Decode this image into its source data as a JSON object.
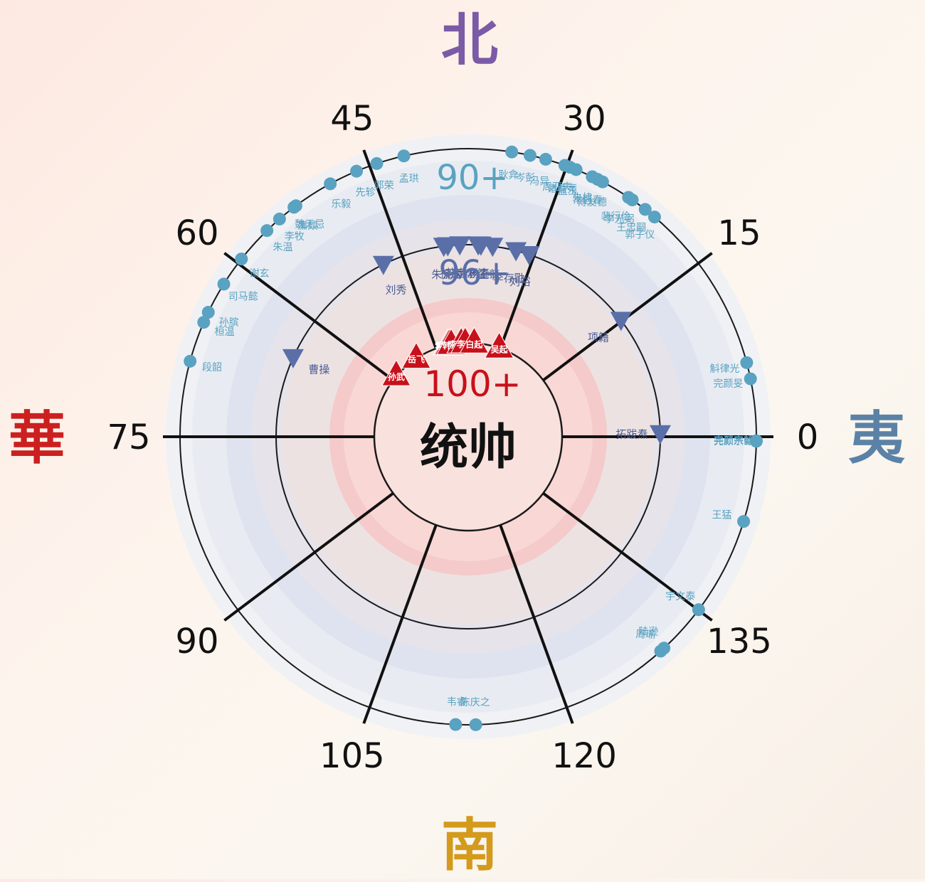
{
  "directions": {
    "north": {
      "text": "北",
      "color": "#7b5aa6"
    },
    "south": {
      "text": "南",
      "color": "#d39a1c"
    },
    "west": {
      "text": "華",
      "color": "#cc1f1f"
    },
    "east": {
      "text": "夷",
      "color": "#5b82a6"
    }
  },
  "center": {
    "title": "统帅",
    "tier_label": "100+"
  },
  "tiers": {
    "inner": {
      "label": "100+",
      "color": "#c8101a"
    },
    "middle": {
      "label": "96+",
      "color": "#5a6fa8"
    },
    "outer": {
      "label": "90+",
      "color": "#5aa2c1"
    }
  },
  "angle_labels": [
    "0",
    "15",
    "30",
    "45",
    "60",
    "75",
    "90",
    "105",
    "120",
    "135"
  ],
  "commanders": {
    "inner": [
      {
        "name": "孙武",
        "angle": 41
      },
      {
        "name": "岳飞",
        "angle": 57
      },
      {
        "name": "霍去病",
        "angle": 77.5
      },
      {
        "name": "卫青",
        "angle": 77.8
      },
      {
        "name": "戚继光",
        "angle": 78.5
      },
      {
        "name": "韩信",
        "angle": 79.7
      },
      {
        "name": "李世民",
        "angle": 85.8
      },
      {
        "name": "李靖",
        "angle": 88.2
      },
      {
        "name": "白起",
        "angle": 93.6
      },
      {
        "name": "吴起",
        "angle": 109
      }
    ],
    "middle": [
      {
        "name": "曹操",
        "angle": 24.3
      },
      {
        "name": "刘秀",
        "angle": 63.8
      },
      {
        "name": "朱元璋",
        "angle": 82.7
      },
      {
        "name": "徐达",
        "angle": 83.9
      },
      {
        "name": "苏定方",
        "angle": 87.5
      },
      {
        "name": "李绩",
        "angle": 93
      },
      {
        "name": "杨素",
        "angle": 93.8
      },
      {
        "name": "王翦",
        "angle": 97.3
      },
      {
        "name": "李存勖",
        "angle": 104.4
      },
      {
        "name": "刘裕",
        "angle": 108.5
      },
      {
        "name": "拓跋焘",
        "angle": 179.1
      },
      {
        "name": "项籍",
        "angle": 142.7
      }
    ],
    "outer": [
      {
        "name": "魏无忌",
        "angle": 53.3
      },
      {
        "name": "廉颇",
        "angle": 52.8
      },
      {
        "name": "李牧",
        "angle": 49.1
      },
      {
        "name": "朱温",
        "angle": 45.7
      },
      {
        "name": "谢玄",
        "angle": 38.1
      },
      {
        "name": "乐毅",
        "angle": 61.4
      },
      {
        "name": "先轸",
        "angle": 67.2
      },
      {
        "name": "郭荣",
        "angle": 71.5
      },
      {
        "name": "孟珙",
        "angle": 77.1
      },
      {
        "name": "司马懿",
        "angle": 32
      },
      {
        "name": "孙膑",
        "angle": 25.6
      },
      {
        "name": "桓温",
        "angle": 23.4
      },
      {
        "name": "段韶",
        "angle": 15.2
      },
      {
        "name": "耿弇",
        "angle": 98.7
      },
      {
        "name": "岑彭",
        "angle": 102.4
      },
      {
        "name": "冯异",
        "angle": 105.6
      },
      {
        "name": "周亚夫",
        "angle": 109.6
      },
      {
        "name": "诸葛亮",
        "angle": 110.7
      },
      {
        "name": "蓝玉",
        "angle": 112
      },
      {
        "name": "朱棣",
        "angle": 115.5
      },
      {
        "name": "常遇春",
        "angle": 116.7
      },
      {
        "name": "傅友德",
        "angle": 117.8
      },
      {
        "name": "裴行俭",
        "angle": 123.8
      },
      {
        "name": "李光弼",
        "angle": 124.7
      },
      {
        "name": "王忠嗣",
        "angle": 127.9
      },
      {
        "name": "郭子仪",
        "angle": 130.3
      },
      {
        "name": "斛律光",
        "angle": 165.1
      },
      {
        "name": "完颜旻",
        "angle": 168.4
      },
      {
        "name": "完颜宗望",
        "angle": 180.8
      },
      {
        "name": "完颜宗翰",
        "angle": 180.9
      },
      {
        "name": "王猛",
        "angle": 197.1
      },
      {
        "name": "宇文泰",
        "angle": 216.9
      },
      {
        "name": "陆逊",
        "angle": 227.2
      },
      {
        "name": "周瑜",
        "angle": 228.1
      },
      {
        "name": "陈庆之",
        "angle": 268.5
      },
      {
        "name": "韦睿",
        "angle": 272.5
      }
    ]
  }
}
